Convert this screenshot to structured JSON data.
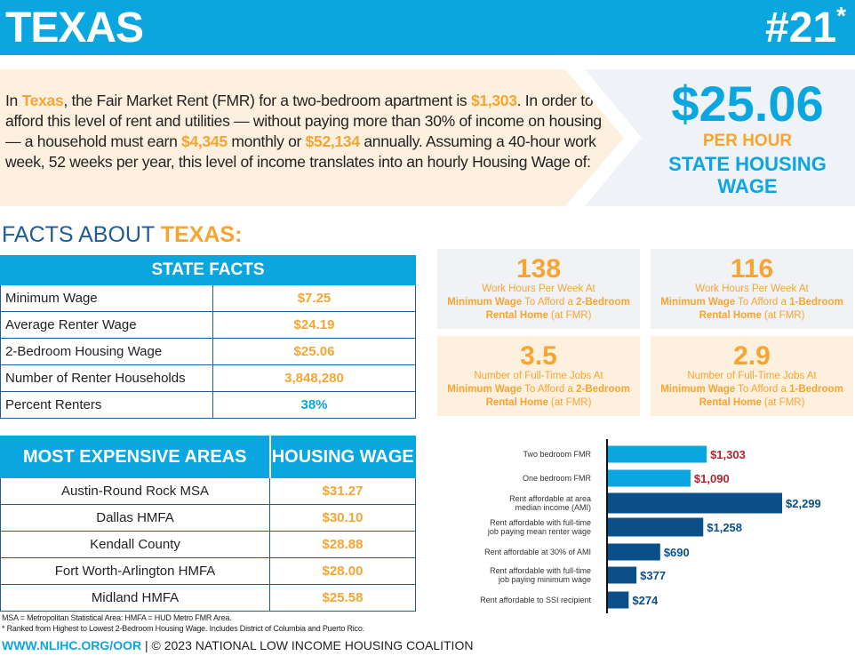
{
  "header": {
    "state": "TEXAS",
    "rank": "#21",
    "rank_mark": "*"
  },
  "intro": {
    "p1": "In ",
    "state": "Texas",
    "p2": ", the Fair Market Rent (FMR) for a two-bedroom apartment is ",
    "fmr": "$1,303",
    "p3": ". In order to afford this level of rent and utilities — without paying more than 30% of income on housing — a household must earn ",
    "monthly": "$4,345",
    "p4": " monthly or ",
    "annual": "$52,134",
    "p5": " annually. Assuming a 40-hour work week, 52 weeks per year, this level of income translates into an hourly Housing Wage of:"
  },
  "wage": {
    "value": "$25.06",
    "per_hour": "PER HOUR",
    "label": "STATE HOUSING WAGE"
  },
  "facts_title": {
    "prefix": "FACTS ABOUT ",
    "state": "TEXAS:"
  },
  "state_facts": {
    "title": "STATE FACTS",
    "rows": [
      {
        "label": "Minimum Wage",
        "value": "$7.25"
      },
      {
        "label": "Average Renter Wage",
        "value": "$24.19"
      },
      {
        "label": "2-Bedroom Housing Wage",
        "value": "$25.06"
      },
      {
        "label": "Number of Renter Households",
        "value": "3,848,280"
      },
      {
        "label": "Percent Renters",
        "value": "38%"
      }
    ]
  },
  "expensive": {
    "col1": "MOST EXPENSIVE AREAS",
    "col2": "HOUSING WAGE",
    "rows": [
      {
        "area": "Austin-Round Rock MSA",
        "wage": "$31.27"
      },
      {
        "area": "Dallas HMFA",
        "wage": "$30.10"
      },
      {
        "area": "Kendall County",
        "wage": "$28.88"
      },
      {
        "area": "Fort Worth-Arlington HMFA",
        "wage": "$28.00"
      },
      {
        "area": "Midland HMFA",
        "wage": "$25.58"
      }
    ]
  },
  "cards": [
    {
      "number": "138",
      "l1": "Work Hours Per Week At",
      "b1": "Minimum Wage",
      "t1": " To Afford a ",
      "b2": "2-Bedroom Rental Home",
      "t2": " (at FMR)"
    },
    {
      "number": "116",
      "l1": "Work Hours Per Week At",
      "b1": "Minimum Wage",
      "t1": " To Afford a ",
      "b2": "1-Bedroom Rental Home",
      "t2": " (at FMR)"
    },
    {
      "number": "3.5",
      "l1": "Number of Full-Time Jobs At",
      "b1": "Minimum Wage",
      "t1": " To Afford a ",
      "b2": "2-Bedroom Rental Home",
      "t2": " (at FMR)"
    },
    {
      "number": "2.9",
      "l1": "Number of Full-Time Jobs At",
      "b1": "Minimum Wage",
      "t1": " To Afford a ",
      "b2": "1-Bedroom Rental Home",
      "t2": " (at FMR)"
    }
  ],
  "chart_data": {
    "type": "bar",
    "orientation": "horizontal",
    "categories": [
      "Two bedroom FMR",
      "One bedroom FMR",
      "Rent affordable at area median income (AMI)",
      "Rent affordable with full-time job paying mean renter wage",
      "Rent affordable at 30% of AMI",
      "Rent affordable with full-time job paying minimum wage",
      "Rent affordable to SSI recipient"
    ],
    "values": [
      1303,
      1090,
      2299,
      1258,
      690,
      377,
      274
    ],
    "labels": [
      "$1,303",
      "$1,090",
      "$2,299",
      "$1,258",
      "$690",
      "$377",
      "$274"
    ],
    "bar_colors": [
      "#0aa6df",
      "#0aa6df",
      "#0b4f8a",
      "#0b4f8a",
      "#0b4f8a",
      "#0b4f8a",
      "#0b4f8a"
    ],
    "label_colors": [
      "#b5232f",
      "#b5232f",
      "#0b4f8a",
      "#0b4f8a",
      "#0b4f8a",
      "#0b4f8a",
      "#0b4f8a"
    ],
    "xlim": [
      0,
      2299
    ],
    "grid": false
  },
  "footer": {
    "note1": "MSA = Metropolitan Statistical Area: HMFA = HUD Metro FMR Area.",
    "note2": "* Ranked from Highest to Lowest 2-Bedroom Housing Wage. Includes District of Columbia and Puerto Rico.",
    "url": "WWW.NLIHC.ORG/OOR",
    "copyright": " | © 2023 NATIONAL LOW INCOME HOUSING COALITION"
  },
  "colors": {
    "blue": "#0aa6df",
    "navy": "#0b4f8a",
    "orange": "#f7a531",
    "red": "#b5232f"
  }
}
